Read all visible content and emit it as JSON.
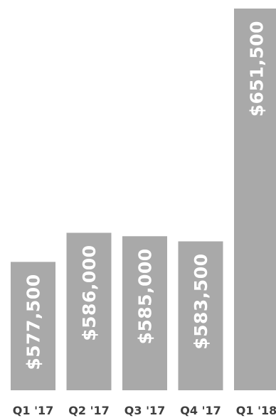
{
  "chart_data": {
    "type": "bar",
    "categories": [
      "Q1 '17",
      "Q2 '17",
      "Q3 '17",
      "Q4 '17",
      "Q1 '18"
    ],
    "values": [
      577500,
      586000,
      585000,
      583500,
      651500
    ],
    "data_labels": [
      "$577,500",
      "$586,000",
      "$585,000",
      "$583,500",
      "$651,500"
    ],
    "title": "",
    "xlabel": "",
    "ylabel": "",
    "ylim": [
      540000,
      654000
    ],
    "grid": false,
    "legend": "none",
    "bar_color": "#a9a9a9",
    "label_color": "#ffffff",
    "tick_color": "#3f3f3f"
  }
}
